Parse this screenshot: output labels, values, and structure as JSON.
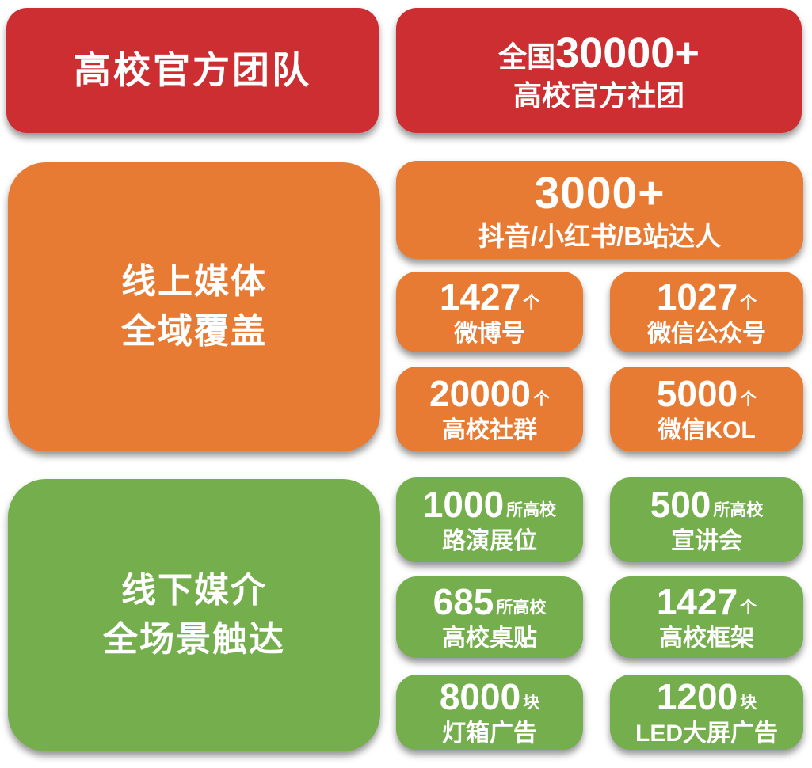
{
  "palette": {
    "red": "#cc2e31",
    "orange": "#e87b33",
    "green": "#74ae4d",
    "text": "#ffffff",
    "background": "#ffffff"
  },
  "teams": {
    "title": "高校官方团队",
    "stat": {
      "prefix": "全国",
      "number": "30000+",
      "caption": "高校官方社团"
    }
  },
  "online": {
    "title_line1": "线上媒体",
    "title_line2": "全域覆盖",
    "hero": {
      "number": "3000+",
      "caption": "抖音/小红书/B站达人"
    },
    "stats": [
      {
        "number": "1427",
        "unit": "个",
        "caption": "微博号"
      },
      {
        "number": "1027",
        "ununit": "",
        "unit": "个",
        "caption": "微信公众号"
      },
      {
        "number": "20000",
        "unit": "个",
        "caption": "高校社群"
      },
      {
        "number": "5000",
        "unit": "个",
        "caption": "微信KOL"
      }
    ]
  },
  "offline": {
    "title_line1": "线下媒介",
    "title_line2": "全场景触达",
    "stats": [
      {
        "number": "1000",
        "unit": "所高校",
        "caption": "路演展位"
      },
      {
        "number": "500",
        "unit": "所高校",
        "caption": "宣讲会"
      },
      {
        "number": "685",
        "unit": "所高校",
        "caption": "高校桌贴"
      },
      {
        "number": "1427",
        "unit": "个",
        "caption": "高校框架"
      },
      {
        "number": "8000",
        "unit": "块",
        "caption": "灯箱广告"
      },
      {
        "number": "1200",
        "unit": "块",
        "caption": "LED大屏广告"
      }
    ]
  }
}
